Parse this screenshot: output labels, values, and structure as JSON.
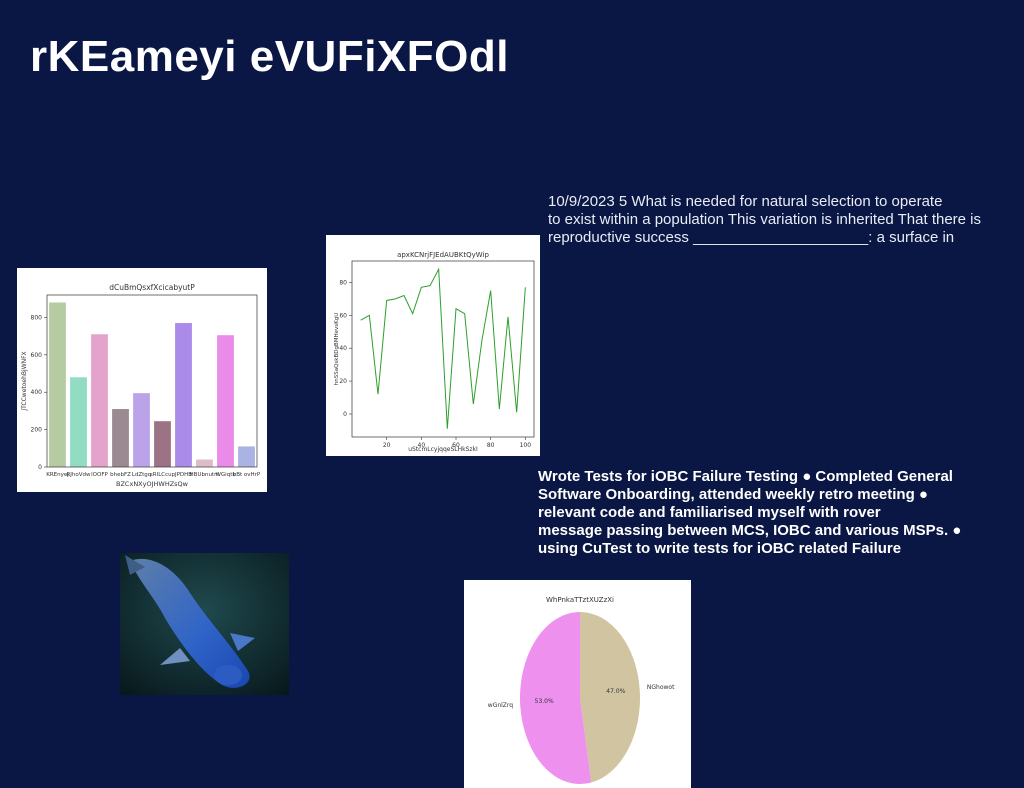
{
  "title": "rKEameyi eVUFiXFOdl",
  "paragraph": {
    "lines": [
      "10/9/2023 5 What is needed for natural selection to operate",
      "to exist within a population This variation is inherited That there is",
      "reproductive success _____________________: a surface in"
    ]
  },
  "highlights": {
    "lines": [
      "Wrote Tests for iOBC Failure Testing ● Completed General",
      "Software Onboarding, attended weekly retro meeting ●",
      "relevant code and familiarised myself with rover",
      "message passing between MCS, IOBC and various MSPs. ●",
      "using CuTest to write tests for iOBC related Failure"
    ]
  },
  "chart_data": [
    {
      "type": "bar",
      "title": "dCuBmQsxfXcicabyutP",
      "xlabel": "BZCxNXyOJHWHZsQw",
      "ylabel": "JTCCwetoehBjWNFX",
      "categories": [
        "KREnyej",
        "RJhoVdw",
        "lOOFP",
        "bhebFZ",
        "LdZtgq",
        "sRILCcup",
        "JPDHB",
        "HBUbnutm",
        "WGiqtk",
        "bBt ovHrP"
      ],
      "values": [
        880,
        480,
        710,
        310,
        395,
        245,
        770,
        40,
        705,
        110
      ],
      "colors": [
        "#b7cba3",
        "#92dcc4",
        "#e3a3cb",
        "#9b8a92",
        "#bba3ea",
        "#9b7384",
        "#aa8bea",
        "#dcbccb",
        "#ea8bea",
        "#aab3e3"
      ],
      "ylim": [
        0,
        920
      ],
      "yticks": [
        0,
        200,
        400,
        600,
        800
      ]
    },
    {
      "type": "line",
      "title": "apxKCNrjFJEdAUBKtQyWip",
      "xlabel": "uStcmLcyjqqeSLHkSzkI",
      "ylabel": "hnSSaQskBDgBMHevsKgU",
      "x": [
        5,
        10,
        15,
        20,
        25,
        30,
        35,
        40,
        45,
        50,
        55,
        60,
        65,
        70,
        75,
        80,
        85,
        90,
        95,
        100
      ],
      "values": [
        57,
        60,
        12,
        69,
        70,
        72,
        61,
        77,
        78,
        88,
        -9,
        64,
        61,
        6,
        45,
        75,
        3,
        59,
        1,
        77
      ],
      "color": "#2ca02c",
      "xlim": [
        0,
        105
      ],
      "ylim": [
        -14,
        93
      ],
      "xticks": [
        20,
        40,
        60,
        80,
        100
      ],
      "yticks": [
        0,
        20,
        40,
        60,
        80
      ]
    },
    {
      "type": "pie",
      "title": "WhPnkaTTztXUZzXi",
      "categories": [
        "NGhowot",
        "wGnlZrq"
      ],
      "values": [
        47.0,
        53.0
      ],
      "value_labels": [
        "47.0%",
        "53.0%"
      ],
      "colors": [
        "#d1c4a1",
        "#ee90ee"
      ]
    }
  ]
}
